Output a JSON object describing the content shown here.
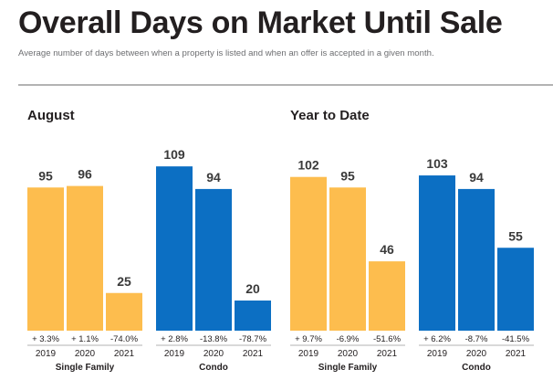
{
  "header": {
    "title": "Overall Days on Market Until Sale",
    "subtitle": "Average number of days between when a property is listed and when an offer is accepted in a given month."
  },
  "colors": {
    "single_family": "#fdbd4e",
    "condo": "#0c6fc3"
  },
  "chart_data": [
    {
      "type": "bar",
      "title": "August",
      "groups": [
        {
          "name": "Single Family",
          "categories": [
            "2019",
            "2020",
            "2021"
          ],
          "values": [
            95,
            96,
            25
          ],
          "changes": [
            "+ 3.3%",
            "+ 1.1%",
            "-74.0%"
          ]
        },
        {
          "name": "Condo",
          "categories": [
            "2019",
            "2020",
            "2021"
          ],
          "values": [
            109,
            94,
            20
          ],
          "changes": [
            "+ 2.8%",
            "-13.8%",
            "-78.7%"
          ]
        }
      ]
    },
    {
      "type": "bar",
      "title": "Year to Date",
      "groups": [
        {
          "name": "Single Family",
          "categories": [
            "2019",
            "2020",
            "2021"
          ],
          "values": [
            102,
            95,
            46
          ],
          "changes": [
            "+ 9.7%",
            "-6.9%",
            "-51.6%"
          ]
        },
        {
          "name": "Condo",
          "categories": [
            "2019",
            "2020",
            "2021"
          ],
          "values": [
            103,
            94,
            55
          ],
          "changes": [
            "+ 6.2%",
            "-8.7%",
            "-41.5%"
          ]
        }
      ]
    }
  ]
}
